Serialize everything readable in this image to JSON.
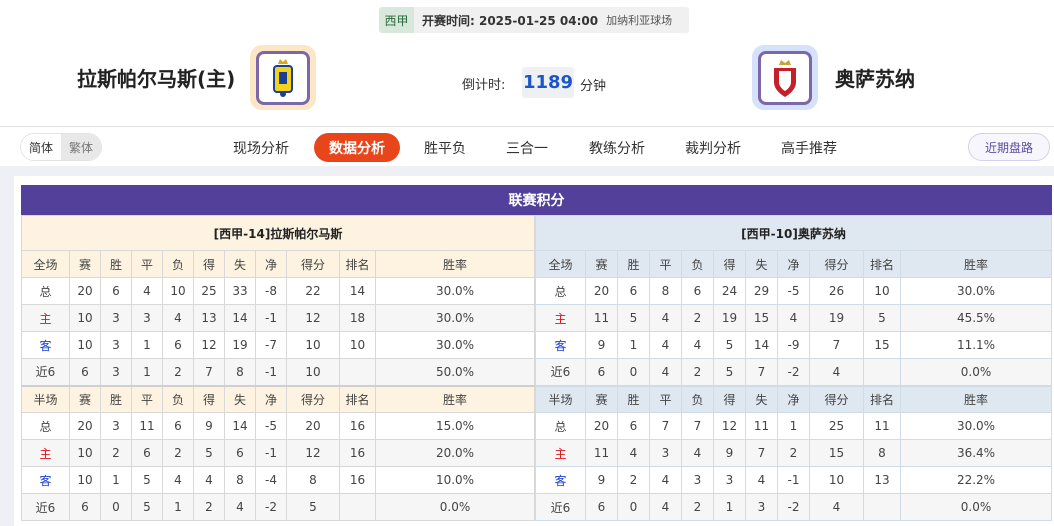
{
  "match": {
    "league": "西甲",
    "kickoff": "开赛时间: 2025-01-25 04:00",
    "venue": "加纳利亚球场",
    "home": {
      "name": "拉斯帕尔马斯(主)"
    },
    "away": {
      "name": "奥萨苏纳"
    },
    "countdown": {
      "label": "倒计时:",
      "value": "1189",
      "unit": "分钟"
    }
  },
  "nav": {
    "lang": [
      "简体",
      "繁体"
    ],
    "tabs": [
      "现场分析",
      "数据分析",
      "胜平负",
      "三合一",
      "教练分析",
      "裁判分析",
      "高手推荐"
    ],
    "active": 1,
    "recent": "近期盘路"
  },
  "colors": {
    "accent": "#e8461a",
    "title_bar": "#52409a",
    "countdown": "#1a56c8"
  },
  "standings": {
    "title": "联赛积分",
    "columns": [
      "赛",
      "胜",
      "平",
      "负",
      "得",
      "失",
      "净",
      "得分",
      "排名",
      "胜率"
    ],
    "home": {
      "header": "[西甲-14]拉斯帕尔马斯",
      "full": {
        "label": "全场",
        "rows": [
          [
            "总",
            "20",
            "6",
            "4",
            "10",
            "25",
            "33",
            "-8",
            "22",
            "14",
            "30.0%"
          ],
          [
            "主",
            "10",
            "3",
            "3",
            "4",
            "13",
            "14",
            "-1",
            "12",
            "18",
            "30.0%"
          ],
          [
            "客",
            "10",
            "3",
            "1",
            "6",
            "12",
            "19",
            "-7",
            "10",
            "10",
            "30.0%"
          ],
          [
            "近6",
            "6",
            "3",
            "1",
            "2",
            "7",
            "8",
            "-1",
            "10",
            "",
            "50.0%"
          ]
        ]
      },
      "half": {
        "label": "半场",
        "rows": [
          [
            "总",
            "20",
            "3",
            "11",
            "6",
            "9",
            "14",
            "-5",
            "20",
            "16",
            "15.0%"
          ],
          [
            "主",
            "10",
            "2",
            "6",
            "2",
            "5",
            "6",
            "-1",
            "12",
            "16",
            "20.0%"
          ],
          [
            "客",
            "10",
            "1",
            "5",
            "4",
            "4",
            "8",
            "-4",
            "8",
            "16",
            "10.0%"
          ],
          [
            "近6",
            "6",
            "0",
            "5",
            "1",
            "2",
            "4",
            "-2",
            "5",
            "",
            "0.0%"
          ]
        ]
      }
    },
    "away": {
      "header": "[西甲-10]奥萨苏纳",
      "full": {
        "label": "全场",
        "rows": [
          [
            "总",
            "20",
            "6",
            "8",
            "6",
            "24",
            "29",
            "-5",
            "26",
            "10",
            "30.0%"
          ],
          [
            "主",
            "11",
            "5",
            "4",
            "2",
            "19",
            "15",
            "4",
            "19",
            "5",
            "45.5%"
          ],
          [
            "客",
            "9",
            "1",
            "4",
            "4",
            "5",
            "14",
            "-9",
            "7",
            "15",
            "11.1%"
          ],
          [
            "近6",
            "6",
            "0",
            "4",
            "2",
            "5",
            "7",
            "-2",
            "4",
            "",
            "0.0%"
          ]
        ]
      },
      "half": {
        "label": "半场",
        "rows": [
          [
            "总",
            "20",
            "6",
            "7",
            "7",
            "12",
            "11",
            "1",
            "25",
            "11",
            "30.0%"
          ],
          [
            "主",
            "11",
            "4",
            "3",
            "4",
            "9",
            "7",
            "2",
            "15",
            "8",
            "36.4%"
          ],
          [
            "客",
            "9",
            "2",
            "4",
            "3",
            "3",
            "4",
            "-1",
            "10",
            "13",
            "22.2%"
          ],
          [
            "近6",
            "6",
            "0",
            "4",
            "2",
            "1",
            "3",
            "-2",
            "4",
            "",
            "0.0%"
          ]
        ]
      }
    }
  }
}
